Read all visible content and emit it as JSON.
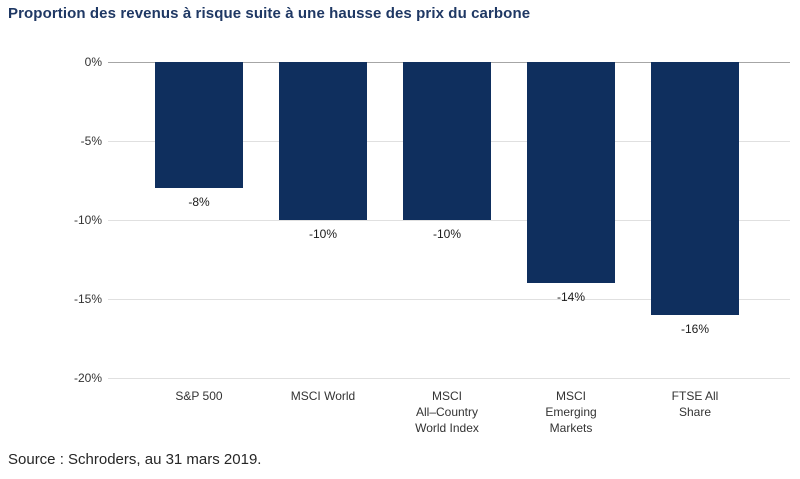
{
  "title": "Proportion des revenus à risque suite à une hausse des prix du carbone",
  "source": "Source : Schroders, au 31 mars 2019.",
  "colors": {
    "bar": "#0f2f5e",
    "title": "#1f3864",
    "axis_text": "#333333",
    "value_label": "#1a1a1a",
    "gridline": "#e0e0e0",
    "zero_line": "#a6a6a6",
    "source_text": "#262626",
    "background": "#ffffff"
  },
  "chart_data": {
    "type": "bar",
    "title": "Proportion des revenus à risque suite à une hausse des prix du carbone",
    "categories": [
      "S&P 500",
      "MSCI World",
      "MSCI\nAll–Country\nWorld Index",
      "MSCI\nEmerging\nMarkets",
      "FTSE All\nShare"
    ],
    "values": [
      -8,
      -10,
      -10,
      -14,
      -16
    ],
    "value_labels": [
      "-8%",
      "-10%",
      "-10%",
      "-14%",
      "-16%"
    ],
    "xlabel": "",
    "ylabel": "",
    "ylim": [
      -20,
      0
    ],
    "yticks": [
      0,
      -5,
      -10,
      -15,
      -20
    ],
    "ytick_labels": [
      "0%",
      "-5%",
      "-10%",
      "-15%",
      "-20%"
    ],
    "grid": true,
    "legend": false,
    "bar_color": "#0f2f5e",
    "source": "Source : Schroders, au 31 mars 2019."
  }
}
